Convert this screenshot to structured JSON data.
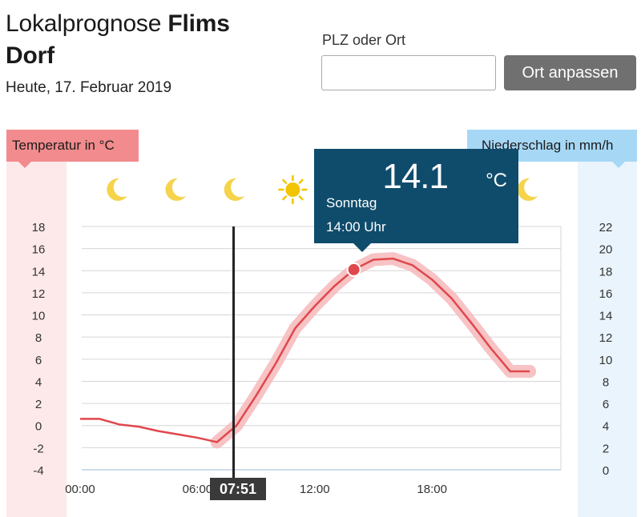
{
  "header": {
    "title_prefix": "Lokalprognose ",
    "title_location": "Flims Dorf",
    "date": "Heute, 17. Februar 2019"
  },
  "location_form": {
    "label": "PLZ oder Ort",
    "input_value": "",
    "input_placeholder": "",
    "button_label": "Ort anpassen"
  },
  "panels": {
    "temperature_label": "Temperatur in °C",
    "precipitation_label": "Niederschlag in mm/h"
  },
  "colors": {
    "temperature": "#e0474c",
    "temperature_band": "#f6b9bb",
    "precipitation_badge": "#a6d8f6",
    "tooltip_bg": "#0f4c6c",
    "sun": "#f2c400",
    "moon": "#f5d34a"
  },
  "weather_icons": [
    {
      "hour": 2,
      "icon": "moon-icon"
    },
    {
      "hour": 5,
      "icon": "moon-icon"
    },
    {
      "hour": 8,
      "icon": "moon-icon"
    },
    {
      "hour": 11,
      "icon": "sun-icon"
    },
    {
      "hour": 23,
      "icon": "moon-icon"
    }
  ],
  "tooltip": {
    "value": "14.1",
    "unit": "°C",
    "day": "Sonntag",
    "time": "14:00 Uhr"
  },
  "now_marker": {
    "label": "07:51",
    "hour": 7.85
  },
  "chart_data": {
    "type": "line",
    "xlabel": "",
    "ylabel": "Temperatur in °C",
    "y2label": "Niederschlag in mm/h",
    "x_ticks": [
      {
        "hour": 0,
        "label": "00:00"
      },
      {
        "hour": 6,
        "label": "06:00"
      },
      {
        "hour": 12,
        "label": "12:00"
      },
      {
        "hour": 18,
        "label": "18:00"
      }
    ],
    "xlim": [
      0,
      24
    ],
    "ylim": [
      -4,
      18
    ],
    "y_ticks": [
      -4,
      -2,
      0,
      2,
      4,
      6,
      8,
      10,
      12,
      14,
      16,
      18
    ],
    "y2lim": [
      0,
      22
    ],
    "y2_ticks": [
      0,
      2,
      4,
      6,
      8,
      10,
      12,
      14,
      16,
      18,
      20,
      22
    ],
    "grid": true,
    "series": [
      {
        "name": "Temperatur",
        "x": [
          0,
          1,
          2,
          3,
          4,
          5,
          6,
          7,
          8,
          9,
          10,
          11,
          12,
          13,
          14,
          15,
          16,
          17,
          18,
          19,
          20,
          21,
          22,
          23
        ],
        "values": [
          0.6,
          0.6,
          0.1,
          -0.1,
          -0.5,
          -0.8,
          -1.1,
          -1.5,
          0.0,
          2.7,
          5.6,
          8.8,
          10.8,
          12.6,
          14.1,
          15.0,
          15.1,
          14.5,
          13.2,
          11.5,
          9.3,
          7.0,
          4.9,
          4.9
        ]
      }
    ],
    "highlight": {
      "hour": 14,
      "value": 14.1
    }
  }
}
